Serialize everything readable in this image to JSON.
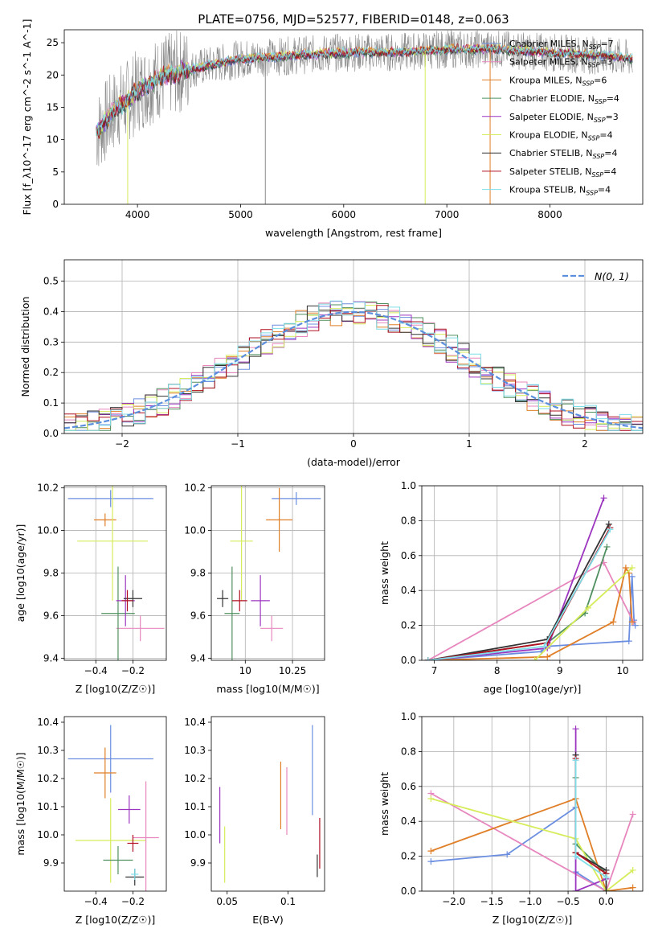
{
  "colors": {
    "chabrier_miles": "#6b8ee0",
    "salpeter_miles": "#e787be",
    "kroupa_miles": "#e07f28",
    "chabrier_elodie": "#4f8f5f",
    "salpeter_elodie": "#9c35c0",
    "kroupa_elodie": "#d6ec5a",
    "chabrier_stelib": "#333333",
    "salpeter_stelib": "#b01020",
    "kroupa_stelib": "#7fdde8",
    "data": "#8a8a8a",
    "gaussian": "#5b8fde"
  },
  "chart_data": [
    {
      "id": "spectrum",
      "type": "line",
      "title": "PLATE=0756, MJD=52577, FIBERID=0148, z=0.063",
      "xlabel": "wavelength [Angstrom, rest frame]",
      "ylabel": "Flux [f_λ10^-17 erg cm^-2 s^-1 A^-1]",
      "xlim": [
        3290,
        8900
      ],
      "ylim": [
        0,
        27
      ],
      "xticks": [
        4000,
        5000,
        6000,
        7000,
        8000
      ],
      "yticks": [
        0,
        5,
        10,
        15,
        20,
        25
      ],
      "grid": false,
      "legend_position": "top-right",
      "continuum": [
        [
          3600,
          11
        ],
        [
          3700,
          13
        ],
        [
          3800,
          15
        ],
        [
          3900,
          16
        ],
        [
          4000,
          17.5
        ],
        [
          4100,
          18.5
        ],
        [
          4200,
          19.5
        ],
        [
          4400,
          20.5
        ],
        [
          4700,
          21.5
        ],
        [
          5000,
          22.5
        ],
        [
          5500,
          23
        ],
        [
          6000,
          23.5
        ],
        [
          6500,
          23.5
        ],
        [
          7000,
          24
        ],
        [
          7500,
          24
        ],
        [
          8000,
          23.5
        ],
        [
          8500,
          23
        ],
        [
          8800,
          22.5
        ]
      ],
      "series": [
        {
          "name": "Chabrier MILES, N_SSP=7",
          "color_key": "chabrier_miles"
        },
        {
          "name": "Salpeter MILES, N_SSP=3",
          "color_key": "salpeter_miles"
        },
        {
          "name": "Kroupa MILES, N_SSP=6",
          "color_key": "kroupa_miles"
        },
        {
          "name": "Chabrier ELODIE, N_SSP=4",
          "color_key": "chabrier_elodie"
        },
        {
          "name": "Salpeter ELODIE, N_SSP=3",
          "color_key": "salpeter_elodie"
        },
        {
          "name": "Kroupa ELODIE, N_SSP=4",
          "color_key": "kroupa_elodie"
        },
        {
          "name": "Chabrier STELIB, N_SSP=4",
          "color_key": "chabrier_stelib"
        },
        {
          "name": "Salpeter STELIB, N_SSP=4",
          "color_key": "salpeter_stelib"
        },
        {
          "name": "Kroupa STELIB, N_SSP=4",
          "color_key": "kroupa_stelib"
        }
      ],
      "spikes": [
        {
          "x": 3905,
          "color_key": "kroupa_elodie"
        },
        {
          "x": 5240,
          "color_key": "data"
        },
        {
          "x": 6790,
          "color_key": "kroupa_elodie"
        },
        {
          "x": 7420,
          "color_key": "kroupa_miles"
        }
      ]
    },
    {
      "id": "residuals",
      "type": "histogram",
      "xlabel": "(data-model)/error",
      "ylabel": "Normed distribution",
      "xlim": [
        -2.5,
        2.5
      ],
      "ylim": [
        0,
        0.57
      ],
      "xticks": [
        -2,
        -1,
        0,
        1,
        2
      ],
      "yticks": [
        0.0,
        0.1,
        0.2,
        0.3,
        0.4,
        0.5
      ],
      "grid": true,
      "legend": "N(0, 1)",
      "legend_position": "top-right",
      "bin_width": 0.1
    },
    {
      "id": "age_vs_z",
      "type": "errorbar",
      "xlabel": "Z [log10(Z/Z☉)]",
      "ylabel": "age [log10(age/yr)]",
      "xlim": [
        -0.57,
        -0.02
      ],
      "ylim": [
        9.39,
        10.21
      ],
      "xticks": [
        -0.4,
        -0.2
      ],
      "yticks": [
        9.4,
        9.6,
        9.8,
        10.0,
        10.2
      ],
      "grid": true,
      "points": [
        {
          "color_key": "chabrier_miles",
          "x": -0.32,
          "xerr": 0.23,
          "y": 10.15,
          "yerr": 0.04
        },
        {
          "color_key": "kroupa_miles",
          "x": -0.35,
          "xerr": 0.06,
          "y": 10.05,
          "yerr": 0.03
        },
        {
          "color_key": "kroupa_elodie",
          "x": -0.31,
          "xerr": 0.19,
          "y": 9.95,
          "yerr": 0.28
        },
        {
          "color_key": "salpeter_miles",
          "x": -0.16,
          "xerr": 0.13,
          "y": 9.54,
          "yerr": 0.06
        },
        {
          "color_key": "chabrier_elodie",
          "x": -0.28,
          "xerr": 0.09,
          "y": 9.61,
          "yerr": 0.22
        },
        {
          "color_key": "salpeter_elodie",
          "x": -0.24,
          "xerr": 0.05,
          "y": 9.67,
          "yerr": 0.12
        },
        {
          "color_key": "chabrier_stelib",
          "x": -0.2,
          "xerr": 0.05,
          "y": 9.68,
          "yerr": 0.04
        },
        {
          "color_key": "salpeter_stelib",
          "x": -0.23,
          "xerr": 0.03,
          "y": 9.67,
          "yerr": 0.05
        }
      ]
    },
    {
      "id": "age_vs_mass",
      "type": "errorbar",
      "xlabel": "mass [log10(M/M☉)]",
      "ylabel": "",
      "xlim": [
        9.82,
        10.42
      ],
      "ylim": [
        9.39,
        10.21
      ],
      "xticks": [
        10.0,
        10.25
      ],
      "yticks": [
        9.4,
        9.6,
        9.8,
        10.0,
        10.2
      ],
      "grid": true,
      "points": [
        {
          "color_key": "chabrier_miles",
          "x": 10.27,
          "xerr": 0.13,
          "y": 10.15,
          "yerr": 0.03
        },
        {
          "color_key": "kroupa_miles",
          "x": 10.18,
          "xerr": 0.07,
          "y": 10.05,
          "yerr": 0.15
        },
        {
          "color_key": "kroupa_elodie",
          "x": 9.98,
          "xerr": 0.06,
          "y": 9.95,
          "yerr": 0.28
        },
        {
          "color_key": "salpeter_miles",
          "x": 10.14,
          "xerr": 0.06,
          "y": 9.54,
          "yerr": 0.06
        },
        {
          "color_key": "chabrier_elodie",
          "x": 9.93,
          "xerr": 0.04,
          "y": 9.61,
          "yerr": 0.22
        },
        {
          "color_key": "salpeter_elodie",
          "x": 10.08,
          "xerr": 0.05,
          "y": 9.67,
          "yerr": 0.12
        },
        {
          "color_key": "chabrier_stelib",
          "x": 9.88,
          "xerr": 0.03,
          "y": 9.68,
          "yerr": 0.04
        },
        {
          "color_key": "salpeter_stelib",
          "x": 9.97,
          "xerr": 0.04,
          "y": 9.67,
          "yerr": 0.05
        }
      ]
    },
    {
      "id": "massweight_vs_age",
      "type": "line",
      "xlabel": "age [log10(age/yr)]",
      "ylabel": "mass weight",
      "xlim": [
        6.8,
        10.32
      ],
      "ylim": [
        0,
        1
      ],
      "xticks": [
        7,
        8,
        9,
        10
      ],
      "yticks": [
        0.0,
        0.2,
        0.4,
        0.6,
        0.8,
        1.0
      ],
      "grid": true,
      "series": [
        {
          "color_key": "chabrier_miles",
          "x": [
            6.9,
            8.7,
            8.8,
            10.1,
            10.15,
            10.18,
            10.2
          ],
          "y": [
            0.0,
            0.05,
            0.08,
            0.11,
            0.48,
            0.23,
            0.2
          ]
        },
        {
          "color_key": "salpeter_miles",
          "x": [
            6.9,
            9.7,
            10.17
          ],
          "y": [
            0.0,
            0.56,
            0.22
          ]
        },
        {
          "color_key": "kroupa_miles",
          "x": [
            6.9,
            8.8,
            9.85,
            10.05,
            10.1,
            10.15
          ],
          "y": [
            0.0,
            0.02,
            0.22,
            0.53,
            0.5,
            0.22
          ]
        },
        {
          "color_key": "chabrier_elodie",
          "x": [
            6.9,
            8.8,
            9.4,
            9.75
          ],
          "y": [
            0.0,
            0.1,
            0.27,
            0.65
          ]
        },
        {
          "color_key": "salpeter_elodie",
          "x": [
            6.9,
            8.8,
            9.7
          ],
          "y": [
            0.0,
            0.07,
            0.93
          ]
        },
        {
          "color_key": "kroupa_elodie",
          "x": [
            8.6,
            9.45,
            10.15
          ],
          "y": [
            0.0,
            0.3,
            0.53
          ]
        },
        {
          "color_key": "chabrier_stelib",
          "x": [
            6.9,
            8.8,
            9.78
          ],
          "y": [
            0.0,
            0.12,
            0.78
          ]
        },
        {
          "color_key": "salpeter_stelib",
          "x": [
            6.9,
            8.8,
            9.8
          ],
          "y": [
            0.0,
            0.1,
            0.76
          ]
        },
        {
          "color_key": "kroupa_stelib",
          "x": [
            6.9,
            8.75,
            9.8
          ],
          "y": [
            0.0,
            0.08,
            0.75
          ]
        }
      ]
    },
    {
      "id": "mass_vs_z",
      "type": "errorbar",
      "xlabel": "Z [log10(Z/Z☉)]",
      "ylabel": "mass [log10(M/M☉)]",
      "xlim": [
        -0.57,
        -0.02
      ],
      "ylim": [
        9.8,
        10.42
      ],
      "xticks": [
        -0.4,
        -0.2
      ],
      "yticks": [
        9.9,
        10.0,
        10.1,
        10.2,
        10.3,
        10.4
      ],
      "grid": false,
      "points": [
        {
          "color_key": "chabrier_miles",
          "x": -0.32,
          "xerr": 0.23,
          "y": 10.27,
          "yerr": 0.12
        },
        {
          "color_key": "kroupa_miles",
          "x": -0.35,
          "xerr": 0.06,
          "y": 10.22,
          "yerr": 0.09
        },
        {
          "color_key": "kroupa_elodie",
          "x": -0.32,
          "xerr": 0.19,
          "y": 9.98,
          "yerr": 0.15
        },
        {
          "color_key": "salpeter_miles",
          "x": -0.13,
          "xerr": 0.07,
          "y": 9.99,
          "yerr": 0.2
        },
        {
          "color_key": "chabrier_elodie",
          "x": -0.28,
          "xerr": 0.08,
          "y": 9.91,
          "yerr": 0.05
        },
        {
          "color_key": "salpeter_elodie",
          "x": -0.22,
          "xerr": 0.06,
          "y": 10.09,
          "yerr": 0.05
        },
        {
          "color_key": "chabrier_stelib",
          "x": -0.19,
          "xerr": 0.05,
          "y": 9.85,
          "yerr": 0.03
        },
        {
          "color_key": "salpeter_stelib",
          "x": -0.2,
          "xerr": 0.03,
          "y": 9.97,
          "yerr": 0.03
        },
        {
          "color_key": "kroupa_stelib",
          "x": -0.19,
          "xerr": 0.02,
          "y": 9.86,
          "yerr": 0.02
        }
      ]
    },
    {
      "id": "mass_vs_ebv",
      "type": "errorbar",
      "xlabel": "E(B-V)",
      "ylabel": "",
      "xlim": [
        0.037,
        0.13
      ],
      "ylim": [
        9.8,
        10.42
      ],
      "xticks": [
        0.05,
        0.1
      ],
      "yticks": [
        9.9,
        10.0,
        10.1,
        10.2,
        10.3,
        10.4
      ],
      "grid": false,
      "points": [
        {
          "color_key": "chabrier_miles",
          "x": 0.12,
          "xerr": 0,
          "y": 10.23,
          "yerr": 0.16
        },
        {
          "color_key": "salpeter_miles",
          "x": 0.099,
          "xerr": 0,
          "y": 10.12,
          "yerr": 0.12
        },
        {
          "color_key": "kroupa_miles",
          "x": 0.094,
          "xerr": 0,
          "y": 10.14,
          "yerr": 0.12
        },
        {
          "color_key": "salpeter_elodie",
          "x": 0.044,
          "xerr": 0,
          "y": 10.07,
          "yerr": 0.1
        },
        {
          "color_key": "kroupa_elodie",
          "x": 0.048,
          "xerr": 0,
          "y": 9.93,
          "yerr": 0.1
        },
        {
          "color_key": "salpeter_stelib",
          "x": 0.126,
          "xerr": 0,
          "y": 9.97,
          "yerr": 0.09
        },
        {
          "color_key": "chabrier_stelib",
          "x": 0.124,
          "xerr": 0,
          "y": 9.89,
          "yerr": 0.04
        }
      ]
    },
    {
      "id": "massweight_vs_z",
      "type": "line",
      "xlabel": "Z [log10(Z/Z☉)]",
      "ylabel": "mass weight",
      "xlim": [
        -2.42,
        0.48
      ],
      "ylim": [
        0,
        1
      ],
      "xticks": [
        -2.0,
        -1.5,
        -1.0,
        -0.5,
        0.0
      ],
      "yticks": [
        0.0,
        0.2,
        0.4,
        0.6,
        0.8,
        1.0
      ],
      "grid": true,
      "series": [
        {
          "color_key": "chabrier_miles",
          "x": [
            -2.3,
            -1.3,
            -0.4,
            -0.4,
            0.0
          ],
          "y": [
            0.17,
            0.21,
            0.48,
            0.11,
            0.0
          ]
        },
        {
          "color_key": "salpeter_miles",
          "x": [
            -2.3,
            0.0,
            0.35
          ],
          "y": [
            0.56,
            0.0,
            0.44
          ]
        },
        {
          "color_key": "kroupa_miles",
          "x": [
            -2.3,
            -0.4,
            0.0,
            0.35
          ],
          "y": [
            0.23,
            0.53,
            0.0,
            0.02
          ]
        },
        {
          "color_key": "chabrier_elodie",
          "x": [
            -0.4,
            -0.4,
            0.0
          ],
          "y": [
            0.65,
            0.27,
            0.1
          ]
        },
        {
          "color_key": "salpeter_elodie",
          "x": [
            -0.4,
            -0.4,
            0.0
          ],
          "y": [
            0.93,
            0.0,
            0.07
          ]
        },
        {
          "color_key": "kroupa_elodie",
          "x": [
            -2.3,
            -0.4,
            0.0,
            0.35
          ],
          "y": [
            0.53,
            0.3,
            0.0,
            0.12
          ]
        },
        {
          "color_key": "chabrier_stelib",
          "x": [
            -0.4,
            -0.4,
            0.0,
            0.0
          ],
          "y": [
            0.78,
            0.22,
            0.12,
            0.0
          ]
        },
        {
          "color_key": "salpeter_stelib",
          "x": [
            -0.4,
            -0.4,
            0.0
          ],
          "y": [
            0.76,
            0.22,
            0.1
          ]
        },
        {
          "color_key": "kroupa_stelib",
          "x": [
            -0.4,
            -0.4,
            0.0
          ],
          "y": [
            0.75,
            0.2,
            0.08
          ]
        }
      ]
    }
  ]
}
